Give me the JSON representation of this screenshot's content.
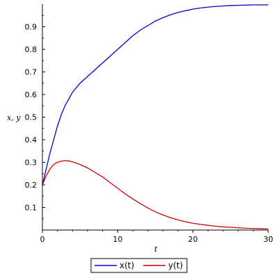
{
  "chart_data": {
    "type": "line",
    "title": "",
    "xlabel": "t",
    "ylabel": "x, y",
    "xlim": [
      0,
      30
    ],
    "ylim": [
      0,
      1
    ],
    "x_ticks": [
      0,
      10,
      20,
      30
    ],
    "y_ticks": [
      0.1,
      0.2,
      0.3,
      0.4,
      0.5,
      0.6,
      0.7,
      0.8,
      0.9
    ],
    "grid": false,
    "legend_position": "bottom",
    "series": [
      {
        "name": "x(t)",
        "color": "#0000cc",
        "x": [
          0,
          0.5,
          1,
          1.5,
          2,
          2.5,
          3,
          4,
          5,
          6,
          7,
          8,
          9,
          10,
          11,
          12,
          13,
          14,
          15,
          16,
          17,
          18,
          19,
          20,
          21,
          22,
          23,
          24,
          25,
          26,
          27,
          28,
          29,
          30
        ],
        "y": [
          0.2,
          0.27,
          0.34,
          0.4,
          0.46,
          0.51,
          0.55,
          0.61,
          0.65,
          0.68,
          0.71,
          0.74,
          0.77,
          0.8,
          0.83,
          0.86,
          0.885,
          0.905,
          0.925,
          0.94,
          0.953,
          0.963,
          0.971,
          0.978,
          0.983,
          0.987,
          0.99,
          0.992,
          0.994,
          0.995,
          0.996,
          0.997,
          0.997,
          0.997
        ]
      },
      {
        "name": "y(t)",
        "color": "#cc0000",
        "x": [
          0,
          0.5,
          1,
          1.5,
          2,
          2.5,
          3,
          3.5,
          4,
          5,
          6,
          7,
          8,
          9,
          10,
          11,
          12,
          13,
          14,
          15,
          16,
          17,
          18,
          19,
          20,
          21,
          22,
          23,
          24,
          25,
          26,
          27,
          28,
          29,
          30
        ],
        "y": [
          0.2,
          0.24,
          0.27,
          0.29,
          0.3,
          0.305,
          0.307,
          0.306,
          0.302,
          0.29,
          0.275,
          0.255,
          0.235,
          0.21,
          0.185,
          0.16,
          0.138,
          0.117,
          0.098,
          0.081,
          0.067,
          0.055,
          0.045,
          0.037,
          0.03,
          0.025,
          0.021,
          0.017,
          0.014,
          0.012,
          0.01,
          0.008,
          0.007,
          0.006,
          0.005
        ]
      }
    ]
  }
}
